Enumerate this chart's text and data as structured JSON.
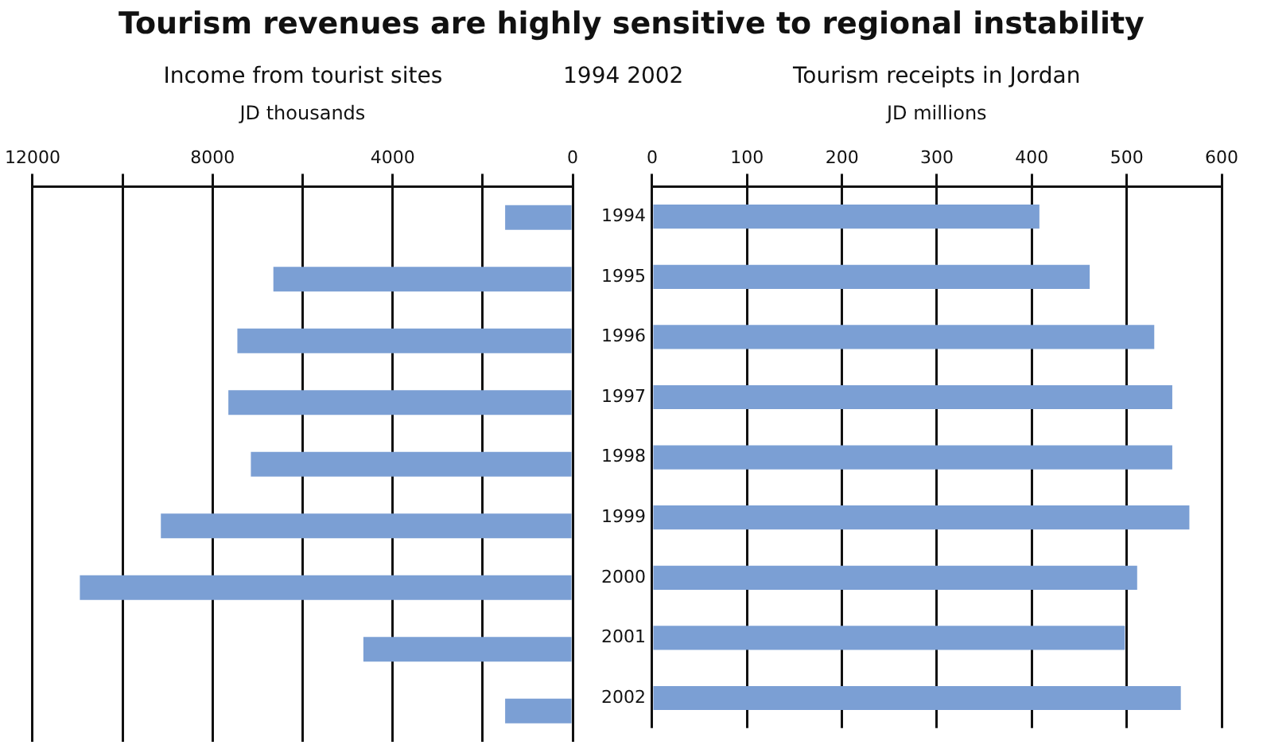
{
  "chart_data": [
    {
      "type": "bar",
      "title": "Tourism revenues are highly sensitive to regional instability",
      "subtitle": "Income from tourist sites",
      "xlabel": "JD thousands",
      "orientation": "horizontal",
      "categories": [
        "1994",
        "1995",
        "1996",
        "1997",
        "1998",
        "1999",
        "2000",
        "2001",
        "2002"
      ],
      "values": [
        1500,
        6650,
        7450,
        7650,
        7150,
        9150,
        10950,
        4650,
        1500
      ],
      "color": "#7b9fd4",
      "xlim": [
        12000,
        0
      ],
      "xticks": [
        12000,
        {
          "value": 10000,
          "label": null
        },
        8000,
        {
          "value": 6000,
          "label": null
        },
        4000,
        {
          "value": 2000,
          "label": null
        },
        0
      ],
      "grid": "x",
      "tick_labels": "x"
    },
    {
      "type": "bar",
      "subtitle": "Tourism receipts in Jordan",
      "xlabel": "JD millions",
      "ylabel": "1994 2002",
      "orientation": "horizontal",
      "categories": [
        "1994",
        "1995",
        "1996",
        "1997",
        "1998",
        "1999",
        "2000",
        "2001",
        "2002"
      ],
      "values": [
        408,
        461,
        529,
        548,
        548,
        566,
        511,
        498,
        557
      ],
      "color": "#7b9fd4",
      "xlim": [
        0,
        600
      ],
      "xticks": [
        0,
        100,
        200,
        300,
        400,
        500,
        600
      ],
      "grid": "x"
    }
  ]
}
